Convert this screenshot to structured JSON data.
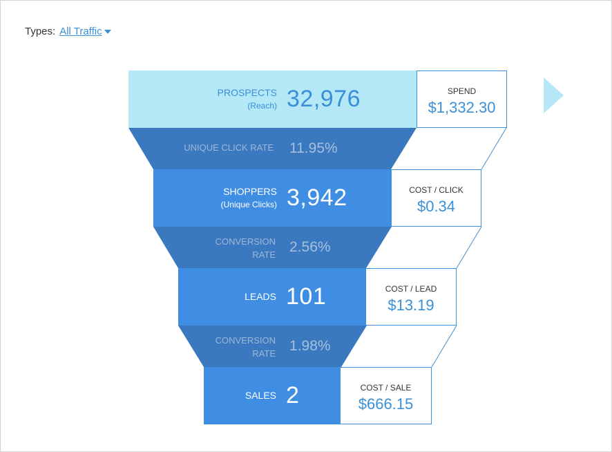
{
  "filter": {
    "label": "Types:",
    "value": "All Traffic"
  },
  "colors": {
    "prospects": "#b4e8f7",
    "stage": "#3f8ee4",
    "rate": "#3a78bf",
    "accent": "#3a8fd6"
  },
  "stages": [
    {
      "label": "PROSPECTS",
      "sublabel": "(Reach)",
      "value": "32,976",
      "cost_label": "SPEND",
      "cost_value": "$1,332.30"
    },
    {
      "label": "SHOPPERS",
      "sublabel": "(Unique Clicks)",
      "value": "3,942",
      "cost_label": "COST / CLICK",
      "cost_value": "$0.34"
    },
    {
      "label": "LEADS",
      "sublabel": "",
      "value": "101",
      "cost_label": "COST / LEAD",
      "cost_value": "$13.19"
    },
    {
      "label": "SALES",
      "sublabel": "",
      "value": "2",
      "cost_label": "COST / SALE",
      "cost_value": "$666.15"
    }
  ],
  "rates": [
    {
      "label_line1": "UNIQUE CLICK RATE",
      "label_line2": "",
      "value": "11.95%"
    },
    {
      "label_line1": "CONVERSION",
      "label_line2": "RATE",
      "value": "2.56%"
    },
    {
      "label_line1": "CONVERSION",
      "label_line2": "RATE",
      "value": "1.98%"
    }
  ]
}
